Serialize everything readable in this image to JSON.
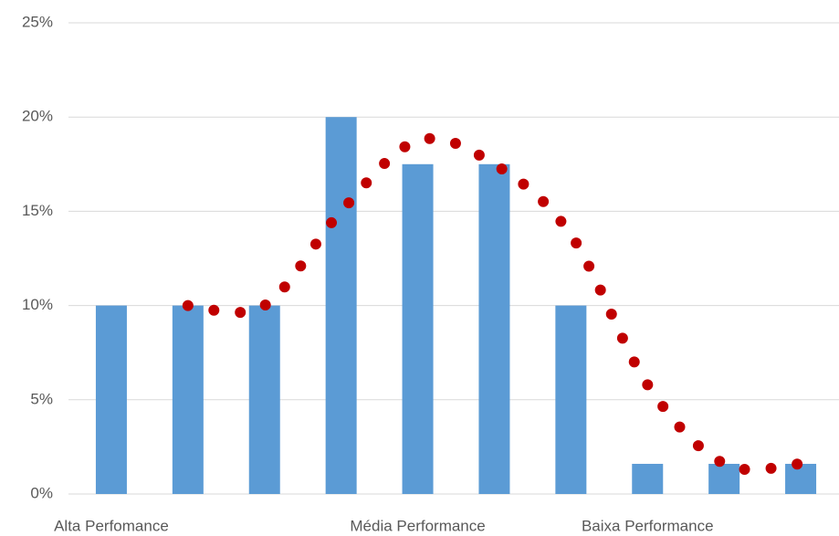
{
  "chart_data": {
    "type": "bar",
    "categories": [
      "Alta Perfomance",
      null,
      null,
      null,
      "Média Performance",
      null,
      null,
      "Baixa Performance",
      null,
      null
    ],
    "series": [
      {
        "type": "bar",
        "color": "#5b9bd5",
        "values": [
          10,
          10,
          10,
          20,
          17.5,
          17.5,
          10,
          1.6,
          1.6,
          1.6
        ]
      },
      {
        "type": "line",
        "style": "dotted",
        "color": "#c00000",
        "values": [
          null,
          10,
          10,
          15,
          18.75,
          17.5,
          13.75,
          5.8,
          1.6,
          1.6
        ]
      }
    ],
    "ylim": [
      0,
      25
    ],
    "yticks": [
      {
        "value": 0,
        "label": "0%"
      },
      {
        "value": 5,
        "label": "5%"
      },
      {
        "value": 10,
        "label": "10%"
      },
      {
        "value": 15,
        "label": "15%"
      },
      {
        "value": 20,
        "label": "20%"
      },
      {
        "value": 25,
        "label": "25%"
      }
    ],
    "grid": true
  }
}
